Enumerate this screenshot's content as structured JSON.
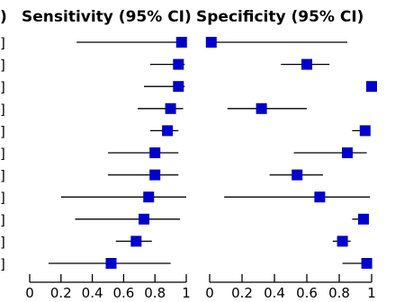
{
  "chart_data": [
    {
      "type": "forest",
      "title": "Sensitivity (95% CI)",
      "xlim": [
        0,
        1
      ],
      "xticks": [
        0,
        0.2,
        0.4,
        0.6,
        0.8,
        1
      ],
      "tick_labels": [
        "0",
        "0.2",
        "0.4",
        "0.6",
        "0.8",
        "1"
      ],
      "points": [
        {
          "est": 0.97,
          "lo": 0.3,
          "hi": 0.99
        },
        {
          "est": 0.95,
          "lo": 0.77,
          "hi": 0.99
        },
        {
          "est": 0.95,
          "lo": 0.73,
          "hi": 0.99
        },
        {
          "est": 0.9,
          "lo": 0.69,
          "hi": 0.98
        },
        {
          "est": 0.88,
          "lo": 0.77,
          "hi": 0.95
        },
        {
          "est": 0.8,
          "lo": 0.5,
          "hi": 0.95
        },
        {
          "est": 0.8,
          "lo": 0.5,
          "hi": 0.95
        },
        {
          "est": 0.76,
          "lo": 0.2,
          "hi": 1.0
        },
        {
          "est": 0.73,
          "lo": 0.29,
          "hi": 0.96
        },
        {
          "est": 0.68,
          "lo": 0.55,
          "hi": 0.78
        },
        {
          "est": 0.52,
          "lo": 0.12,
          "hi": 0.9
        }
      ]
    },
    {
      "type": "forest",
      "title": "Specificity (95% CI)",
      "xlim": [
        0,
        1
      ],
      "xticks": [
        0,
        0.2,
        0.4,
        0.6,
        0.8,
        1
      ],
      "tick_labels": [
        "0",
        "0.2",
        "0.4",
        "0.6",
        "0.8",
        "1"
      ],
      "points": [
        {
          "est": 0.01,
          "lo": 0.0,
          "hi": 0.85
        },
        {
          "est": 0.6,
          "lo": 0.44,
          "hi": 0.74
        },
        {
          "est": 1.0,
          "lo": 0.97,
          "hi": 1.0
        },
        {
          "est": 0.32,
          "lo": 0.11,
          "hi": 0.6
        },
        {
          "est": 0.96,
          "lo": 0.88,
          "hi": 0.99
        },
        {
          "est": 0.85,
          "lo": 0.52,
          "hi": 0.97
        },
        {
          "est": 0.54,
          "lo": 0.37,
          "hi": 0.7
        },
        {
          "est": 0.68,
          "lo": 0.09,
          "hi": 0.99
        },
        {
          "est": 0.95,
          "lo": 0.88,
          "hi": 0.98
        },
        {
          "est": 0.82,
          "lo": 0.76,
          "hi": 0.87
        },
        {
          "est": 0.97,
          "lo": 0.82,
          "hi": 1.0
        }
      ]
    }
  ],
  "colors": {
    "marker": "#0000cc",
    "line": "#000000"
  },
  "row_label_fragment": "]",
  "left_title_fragment": ")"
}
